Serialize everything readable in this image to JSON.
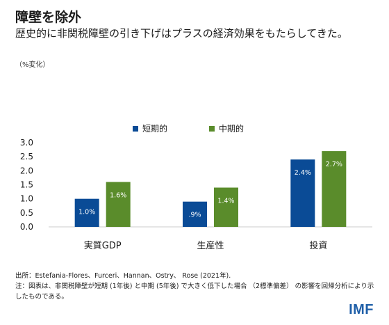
{
  "header": {
    "title": "障壁を除外",
    "subtitle": "歴史的に非関税障壁の引き下げはプラスの経済効果をもたらしてきた。",
    "unit": "（%変化）"
  },
  "footer": {
    "source": "出所：Estefania-Flores、Furceri、Hannan、Ostry、 Rose (2021年).",
    "note": "注：図表は、非関税障壁が短期 (1年後) と中期 (5年後) で大きく低下した場合 （2標準偏差） の影響を回帰分析により示したものである。"
  },
  "logo": "IMF",
  "colors": {
    "short": "#0a4b96",
    "medium": "#5a8c2b"
  },
  "chart_data": {
    "type": "bar",
    "categories": [
      "実質GDP",
      "生産性",
      "投資"
    ],
    "series": [
      {
        "name": "短期的",
        "values": [
          1.0,
          0.9,
          2.4
        ],
        "labels": [
          "1.0%",
          ".9%",
          "2.4%"
        ]
      },
      {
        "name": "中期的",
        "values": [
          1.6,
          1.4,
          2.7
        ],
        "labels": [
          "1.6%",
          "1.4%",
          "2.7%"
        ]
      }
    ],
    "yticks": [
      "0.0",
      "0.5",
      "1.0",
      "1.5",
      "2.0",
      "2.5",
      "3.0"
    ],
    "ylim": [
      0,
      3.0
    ],
    "legend_position": "top-center",
    "grid": false
  }
}
